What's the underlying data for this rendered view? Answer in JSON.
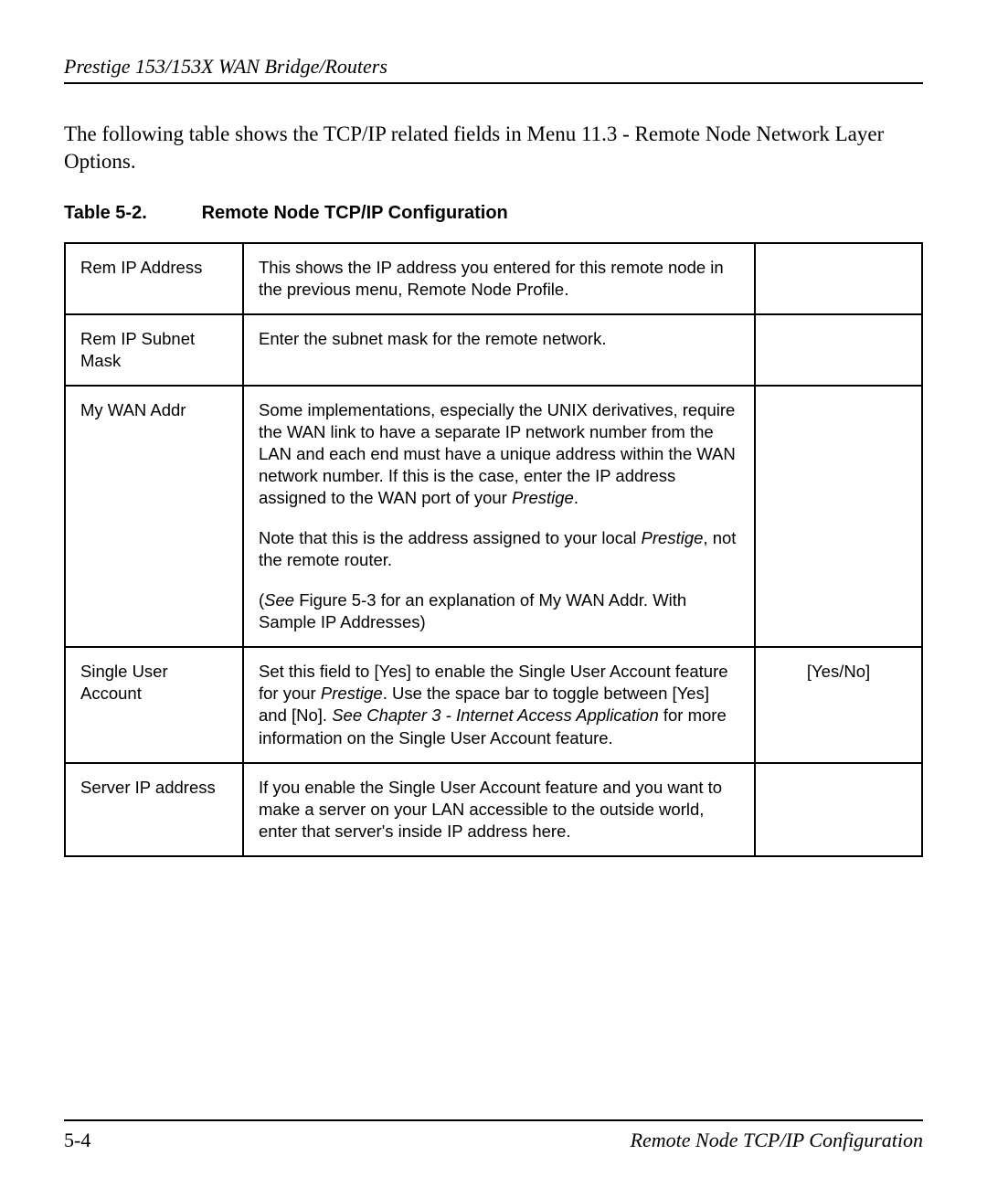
{
  "header": {
    "text": "Prestige 153/153X  WAN Bridge/Routers"
  },
  "intro": {
    "text": "The following table shows the TCP/IP related fields in Menu 11.3 - Remote Node Network Layer Options."
  },
  "table_caption": {
    "number": "Table 5-2.",
    "title": "Remote Node TCP/IP Configuration"
  },
  "rows": {
    "r0": {
      "field": "Rem IP Address",
      "desc": "This shows the IP address you entered for this remote node in the previous menu, Remote Node Profile.",
      "options": ""
    },
    "r1": {
      "field": "Rem IP Subnet Mask",
      "desc": "Enter the subnet mask for the remote network.",
      "options": ""
    },
    "r2": {
      "field": "My WAN Addr",
      "p1a": "Some implementations, especially the UNIX derivatives, require the WAN link to have a separate IP network number from the LAN and each end must have a unique address within the WAN network number. If this is the case, enter the IP address assigned to the WAN port of your ",
      "p1b_italic": "Prestige",
      "p1c": ".",
      "p2a": "Note that this is the address assigned to your local ",
      "p2b_italic": "Prestige",
      "p2c": ", not the remote router.",
      "p3a": "(",
      "p3b_italic": "See ",
      "p3c": "Figure 5-3 for an explanation of My WAN Addr. With Sample IP Addresses)",
      "options": ""
    },
    "r3": {
      "field": "Single User Account",
      "p1a": "Set this field to [Yes] to enable the Single User Account feature for your ",
      "p1b_italic": "Prestige",
      "p1c": ". Use the space bar to toggle between [Yes] and [No]. ",
      "p1d_italic": "See Chapter 3 - Internet Access Application ",
      "p1e": "for more information on the Single User Account feature.",
      "options": "[Yes/No]"
    },
    "r4": {
      "field": "Server IP address",
      "desc": "If you enable the Single User Account feature and you want to make a server on your LAN accessible to the outside world, enter that server's inside IP address here.",
      "options": ""
    }
  },
  "footer": {
    "left": "5-4",
    "right": "Remote Node TCP/IP Configuration"
  }
}
